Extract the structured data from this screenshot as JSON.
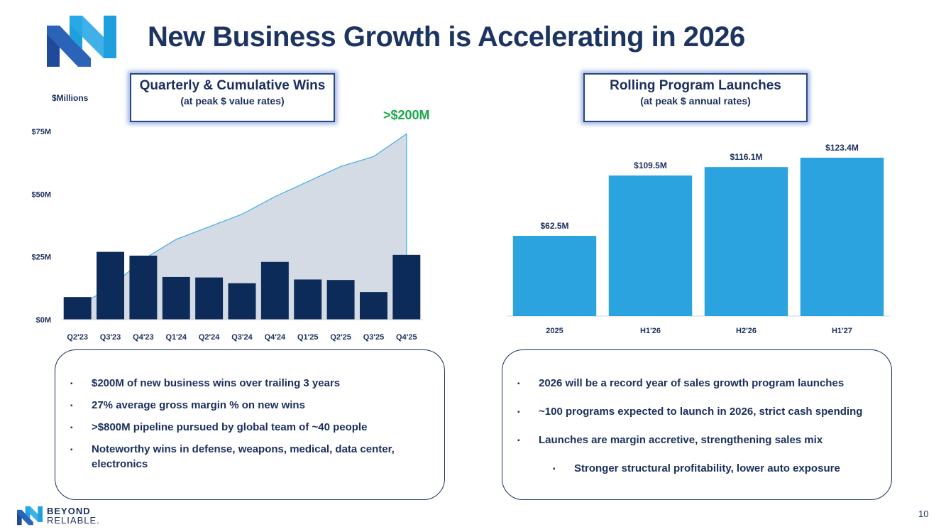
{
  "page": {
    "title": "New Business Growth is Accelerating in 2026",
    "page_number": "10"
  },
  "left_box": {
    "title": "Quarterly & Cumulative Wins",
    "subtitle": "(at peak $ value rates)"
  },
  "right_box": {
    "title": "Rolling Program Launches",
    "subtitle": "(at peak $ annual rates)"
  },
  "left_chart_labels": {
    "unit": "$Millions",
    "callout": ">$200M"
  },
  "chart_data": [
    {
      "type": "bar",
      "categories": [
        "Q2'23",
        "Q3'23",
        "Q4'23",
        "Q1'24",
        "Q2'24",
        "Q3'24",
        "Q4'24",
        "Q1'25",
        "Q2'25",
        "Q3'25",
        "Q4'25"
      ],
      "series": [
        {
          "values": [
            9,
            27,
            25.5,
            17,
            16.8,
            14.5,
            23,
            16,
            15.8,
            11,
            25.8
          ]
        },
        {
          "type": "area",
          "values": [
            5,
            13,
            24,
            32,
            37,
            42,
            49,
            55,
            61,
            65,
            74
          ]
        }
      ],
      "yticks": [
        "$0M",
        "$25M",
        "$50M",
        "$75M"
      ],
      "ylim": [
        0,
        75
      ],
      "colors": {
        "bars": "#0d2b59",
        "area_fill": "#d5dbe5",
        "area_line": "#3daee3"
      }
    },
    {
      "type": "bar",
      "categories": [
        "2025",
        "H1'26",
        "H2'26",
        "H1'27"
      ],
      "values": [
        62.5,
        109.5,
        116.1,
        123.4
      ],
      "data_labels": [
        "$62.5M",
        "$109.5M",
        "$116.1M",
        "$123.4M"
      ],
      "colors": {
        "bars": "#2aa3de"
      }
    }
  ],
  "left_bullets": [
    "$200M of new business wins over trailing 3 years",
    "27% average gross margin % on new wins",
    ">$800M pipeline pursued by global team of ~40 people",
    "Noteworthy wins in defense, weapons, medical, data center, electronics"
  ],
  "right_bullets": [
    "2026 will be a record year of sales growth program launches",
    "~100 programs expected to launch in 2026, strict cash spending",
    "Launches are margin accretive, strengthening sales mix"
  ],
  "right_sub_bullet": "Stronger structural profitability, lower auto exposure",
  "footer": {
    "brand_top": "BEYOND",
    "brand_bottom": "RELIABLE."
  }
}
